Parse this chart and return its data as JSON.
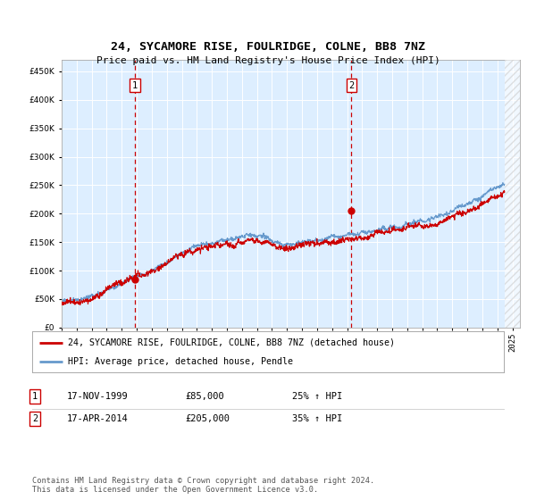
{
  "title": "24, SYCAMORE RISE, FOULRIDGE, COLNE, BB8 7NZ",
  "subtitle": "Price paid vs. HM Land Registry's House Price Index (HPI)",
  "legend_line1": "24, SYCAMORE RISE, FOULRIDGE, COLNE, BB8 7NZ (detached house)",
  "legend_line2": "HPI: Average price, detached house, Pendle",
  "sale1_label": "1",
  "sale1_date": "17-NOV-1999",
  "sale1_price": "£85,000",
  "sale1_hpi": "25% ↑ HPI",
  "sale2_label": "2",
  "sale2_date": "17-APR-2014",
  "sale2_price": "£205,000",
  "sale2_hpi": "35% ↑ HPI",
  "footnote": "Contains HM Land Registry data © Crown copyright and database right 2024.\nThis data is licensed under the Open Government Licence v3.0.",
  "red_color": "#cc0000",
  "blue_color": "#6699cc",
  "background_color": "#ddeeff",
  "hatch_color": "#cccccc",
  "grid_color": "#ffffff",
  "ylim": [
    0,
    470000
  ],
  "yticks": [
    0,
    50000,
    100000,
    150000,
    200000,
    250000,
    300000,
    350000,
    400000,
    450000
  ],
  "sale1_x": 1999.88,
  "sale1_y": 85000,
  "sale2_x": 2014.29,
  "sale2_y": 205000,
  "xmin": 1995.0,
  "xmax": 2025.5,
  "data_end": 2024.5
}
